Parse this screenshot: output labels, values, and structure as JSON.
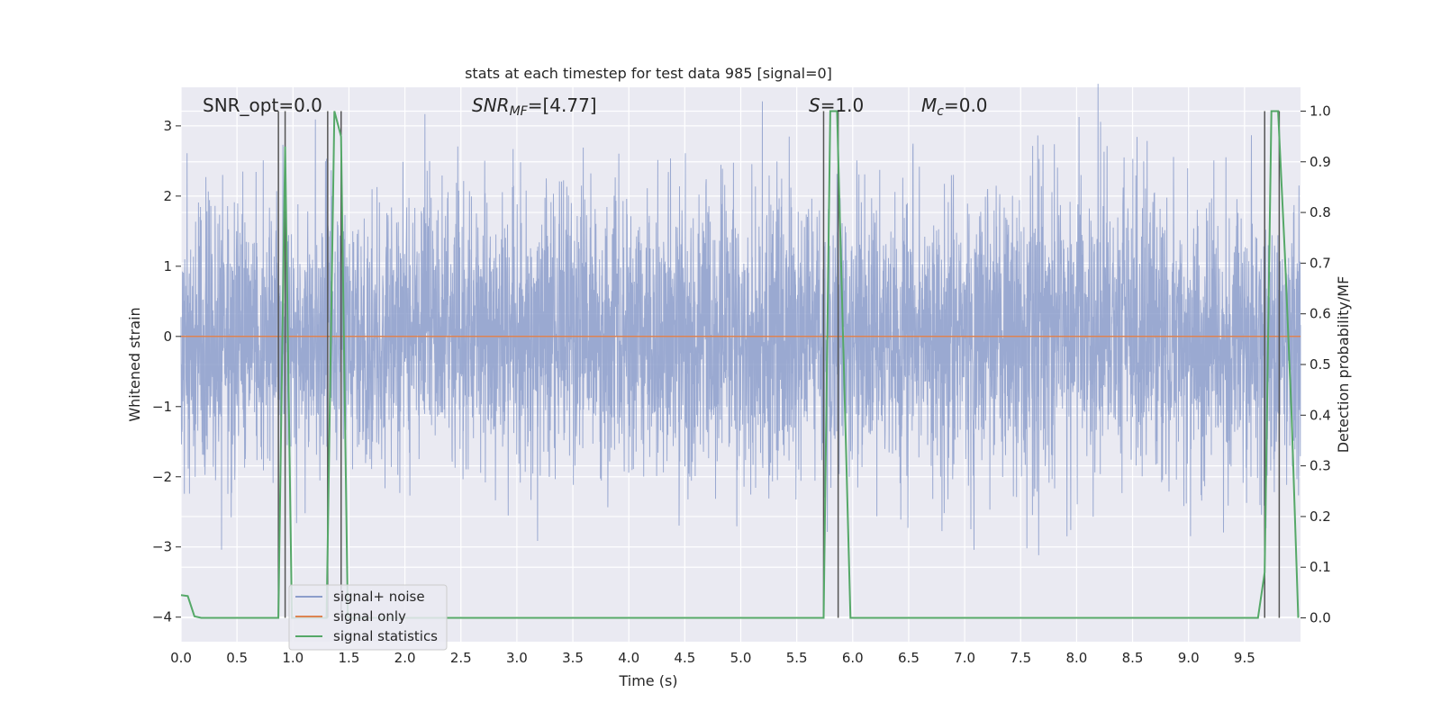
{
  "chart_data": {
    "type": "line",
    "title": "stats at each timestep for test data 985 [signal=0]",
    "xlabel": "Time (s)",
    "ylabel": "Whitened strain",
    "ylabel_right": "Detection probability/MF",
    "xlim": [
      0,
      10
    ],
    "ylim": [
      -4.35,
      3.55
    ],
    "ylim_right": [
      -0.047,
      1.047
    ],
    "xticks": [
      "0.0",
      "0.5",
      "1.0",
      "1.5",
      "2.0",
      "2.5",
      "3.0",
      "3.5",
      "4.0",
      "4.5",
      "5.0",
      "5.5",
      "6.0",
      "6.5",
      "7.0",
      "7.5",
      "8.0",
      "8.5",
      "9.0",
      "9.5"
    ],
    "yticks": [
      "3",
      "2",
      "1",
      "0",
      "−1",
      "−2",
      "−3",
      "−4"
    ],
    "yticks_right": [
      "1.0",
      "0.9",
      "0.8",
      "0.7",
      "0.6",
      "0.5",
      "0.4",
      "0.3",
      "0.2",
      "0.1",
      "0.0"
    ],
    "annotations": {
      "snr_opt": "SNR_opt=0.0",
      "snr_mf_main": "SNR",
      "snr_mf_sub": "MF",
      "snr_mf_val": "=[4.77]",
      "s_main": "S",
      "s_val": "=1.0",
      "mc_main": "M",
      "mc_sub": "c",
      "mc_val": "=0.0"
    },
    "legend": {
      "position": "lower-left",
      "entries": [
        "signal+ noise",
        "signal only",
        "signal statistics"
      ]
    },
    "colors": {
      "noise": "#8c9ecb",
      "signal": "#dd8452",
      "stats": "#55a868",
      "vlines": "#555555",
      "background": "#eaeaf2",
      "grid": "#ffffff"
    },
    "series": [
      {
        "name": "signal+ noise",
        "description": "whitened strain noise samples",
        "amplitude_std": 1.0
      },
      {
        "name": "signal only",
        "x": [
          0,
          10
        ],
        "y": [
          0,
          0
        ]
      },
      {
        "name": "signal statistics",
        "x": [
          0.0,
          0.06,
          0.12,
          0.18,
          0.25,
          0.5,
          0.75,
          0.87,
          0.93,
          0.99,
          1.3,
          1.37,
          1.43,
          1.49,
          2.0,
          3.0,
          4.0,
          5.0,
          5.74,
          5.8,
          5.86,
          5.92,
          5.98,
          6.5,
          7.0,
          8.0,
          9.0,
          9.5,
          9.62,
          9.68,
          9.74,
          9.8,
          9.86,
          9.92,
          9.98
        ],
        "y": [
          0.045,
          0.043,
          0.003,
          0.0,
          0.0,
          0.0,
          0.0,
          0.0,
          0.93,
          0.0,
          0.0,
          1.0,
          0.95,
          0.0,
          0.0,
          0.0,
          0.0,
          0.0,
          0.0,
          1.0,
          1.0,
          0.5,
          0.0,
          0.0,
          0.0,
          0.0,
          0.0,
          0.0,
          0.0,
          0.09,
          1.0,
          1.0,
          0.72,
          0.4,
          0.0
        ]
      }
    ],
    "vlines_x": [
      0.87,
      0.93,
      1.31,
      1.43,
      5.74,
      5.87,
      9.68,
      9.81
    ],
    "vlines_y_right": [
      0.0,
      1.0
    ]
  }
}
